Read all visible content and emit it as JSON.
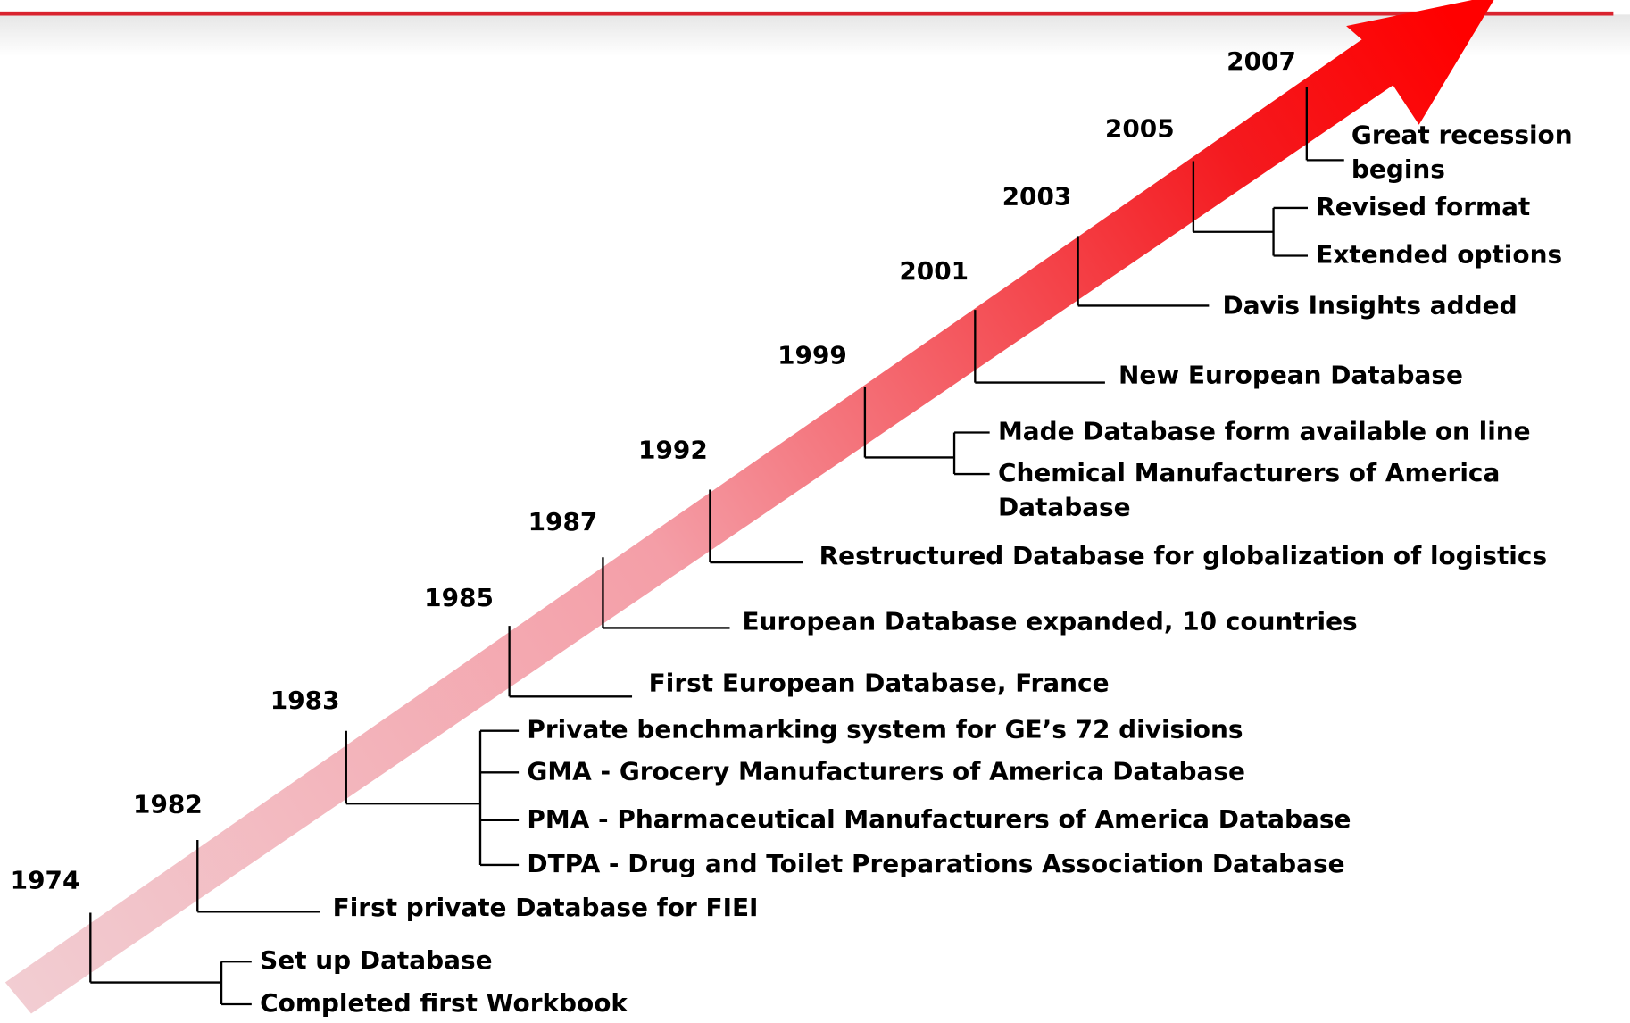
{
  "events": [
    {
      "year": "1974",
      "items": [
        [
          "Set up Database"
        ],
        [
          "Completed first Workbook"
        ]
      ]
    },
    {
      "year": "1982",
      "items": [
        [
          "First private Database for FIEI"
        ]
      ]
    },
    {
      "year": "1983",
      "items": [
        [
          "Private benchmarking system for GE’s 72 divisions"
        ],
        [
          "GMA - Grocery Manufacturers of America Database"
        ],
        [
          "PMA - Pharmaceutical Manufacturers of America Database"
        ],
        [
          "DTPA - Drug and Toilet Preparations Association Database"
        ]
      ]
    },
    {
      "year": "1985",
      "items": [
        [
          "First European Database, France"
        ]
      ]
    },
    {
      "year": "1987",
      "items": [
        [
          "European Database expanded, 10 countries"
        ]
      ]
    },
    {
      "year": "1992",
      "items": [
        [
          "Restructured Database for globalization of logistics"
        ]
      ]
    },
    {
      "year": "1999",
      "items": [
        [
          "Made Database form available on line"
        ],
        [
          "Chemical Manufacturers of America",
          "Database"
        ]
      ]
    },
    {
      "year": "2001",
      "items": [
        [
          "New European Database"
        ]
      ]
    },
    {
      "year": "2003",
      "items": [
        [
          "Davis Insights added"
        ]
      ]
    },
    {
      "year": "2005",
      "items": [
        [
          "Revised format"
        ],
        [
          "Extended options"
        ]
      ]
    },
    {
      "year": "2007",
      "items": [
        [
          "Great recession",
          "begins"
        ]
      ]
    }
  ]
}
